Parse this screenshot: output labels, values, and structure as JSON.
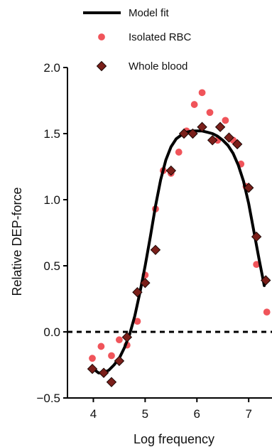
{
  "chart_data": {
    "type": "scatter",
    "xlabel": "Log frequency",
    "ylabel": "Relative DEP-force",
    "xlim": [
      3.5,
      7.45
    ],
    "ylim": [
      -0.5,
      2.0
    ],
    "x_ticks": [
      4,
      5,
      6,
      7
    ],
    "y_ticks": [
      -0.5,
      0.0,
      0.5,
      1.0,
      1.5,
      2.0
    ],
    "x_tick_labels": [
      "4",
      "5",
      "6",
      "7"
    ],
    "y_tick_labels": [
      "−0.5",
      "0.0",
      "0.5",
      "1.0",
      "1.5",
      "2.0"
    ],
    "legend_position": "top",
    "reference_line": {
      "y": 0,
      "style": "dashed"
    },
    "legend": [
      {
        "label": "Model fit",
        "kind": "line"
      },
      {
        "label": "Isolated RBC",
        "kind": "circle"
      },
      {
        "label": "Whole blood",
        "kind": "diamond"
      }
    ],
    "series": [
      {
        "name": "Model fit",
        "kind": "line",
        "color": "#000000",
        "x": [
          4.0,
          4.1,
          4.2,
          4.3,
          4.4,
          4.5,
          4.6,
          4.7,
          4.8,
          4.9,
          5.0,
          5.1,
          5.2,
          5.3,
          5.4,
          5.5,
          5.6,
          5.7,
          5.8,
          5.9,
          6.0,
          6.1,
          6.2,
          6.3,
          6.4,
          6.5,
          6.6,
          6.7,
          6.8,
          6.9,
          7.0,
          7.1,
          7.2,
          7.3
        ],
        "y": [
          -0.28,
          -0.31,
          -0.31,
          -0.29,
          -0.25,
          -0.2,
          -0.12,
          -0.02,
          0.12,
          0.3,
          0.5,
          0.72,
          0.95,
          1.15,
          1.3,
          1.4,
          1.46,
          1.49,
          1.51,
          1.52,
          1.52,
          1.52,
          1.51,
          1.5,
          1.48,
          1.45,
          1.41,
          1.35,
          1.26,
          1.14,
          0.97,
          0.76,
          0.55,
          0.35
        ]
      },
      {
        "name": "Isolated RBC",
        "kind": "circle",
        "color": "#f0545a",
        "x": [
          3.98,
          4.15,
          4.35,
          4.5,
          4.65,
          4.85,
          5.0,
          5.2,
          5.35,
          5.5,
          5.65,
          5.8,
          5.95,
          6.1,
          6.25,
          6.4,
          6.55,
          6.7,
          6.85,
          6.95,
          7.15,
          7.35
        ],
        "y": [
          -0.2,
          -0.11,
          -0.18,
          -0.06,
          -0.1,
          0.08,
          0.43,
          0.93,
          1.22,
          1.2,
          1.36,
          1.52,
          1.72,
          1.81,
          1.66,
          1.45,
          1.6,
          1.45,
          1.27,
          1.1,
          0.51,
          0.15
        ]
      },
      {
        "name": "Whole blood",
        "kind": "diamond",
        "color": "#7a1f1a",
        "x": [
          3.98,
          4.2,
          4.35,
          4.5,
          4.65,
          4.85,
          5.0,
          5.2,
          5.5,
          5.75,
          5.92,
          6.1,
          6.3,
          6.45,
          6.62,
          6.78,
          7.0,
          7.15,
          7.33
        ],
        "y": [
          -0.28,
          -0.31,
          -0.38,
          -0.22,
          -0.04,
          0.3,
          0.37,
          0.62,
          1.22,
          1.5,
          1.5,
          1.55,
          1.45,
          1.55,
          1.47,
          1.42,
          1.09,
          0.72,
          0.39
        ]
      }
    ]
  }
}
